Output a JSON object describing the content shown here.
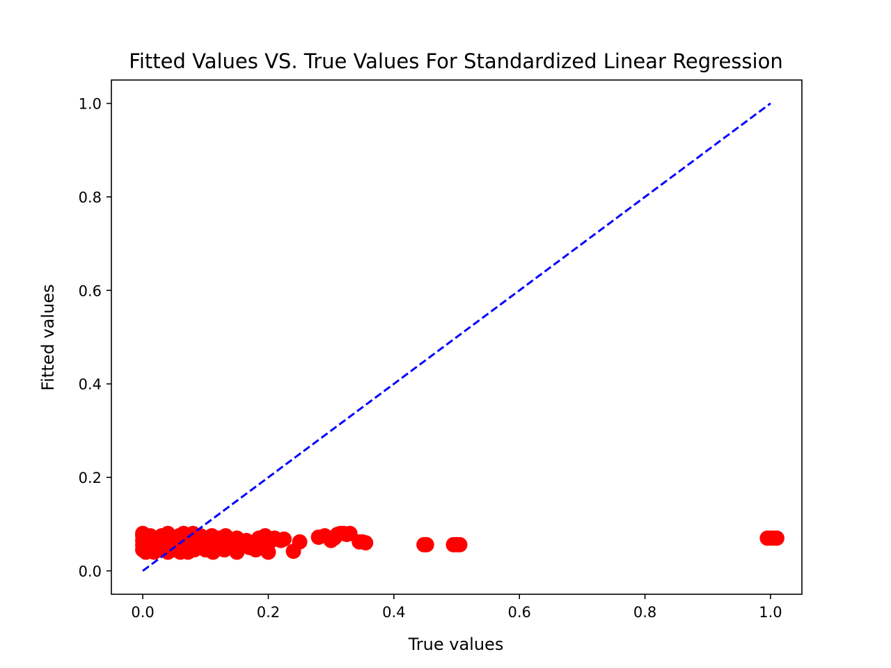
{
  "chart_data": {
    "type": "scatter",
    "title": "Fitted Values VS. True Values For Standardized Linear Regression",
    "xlabel": "True values",
    "ylabel": "Fitted values",
    "xlim": [
      -0.05,
      1.05
    ],
    "ylim": [
      -0.05,
      1.05
    ],
    "xticks": [
      {
        "value": 0.0,
        "label": "0.0"
      },
      {
        "value": 0.2,
        "label": "0.2"
      },
      {
        "value": 0.4,
        "label": "0.4"
      },
      {
        "value": 0.6,
        "label": "0.6"
      },
      {
        "value": 0.8,
        "label": "0.8"
      },
      {
        "value": 1.0,
        "label": "1.0"
      }
    ],
    "yticks": [
      {
        "value": 0.0,
        "label": "0.0"
      },
      {
        "value": 0.2,
        "label": "0.2"
      },
      {
        "value": 0.4,
        "label": "0.4"
      },
      {
        "value": 0.6,
        "label": "0.6"
      },
      {
        "value": 0.8,
        "label": "0.8"
      },
      {
        "value": 1.0,
        "label": "1.0"
      }
    ],
    "grid": false,
    "legend": "none",
    "reference_line": {
      "x": [
        0.0,
        1.0
      ],
      "y": [
        0.0,
        1.0
      ],
      "style": "dashed",
      "color": "#0000ff"
    },
    "series": [
      {
        "color": "#ff0000",
        "marker": "circle",
        "points": [
          {
            "x": 0.0,
            "y": 0.045
          },
          {
            "x": 0.0,
            "y": 0.055
          },
          {
            "x": 0.0,
            "y": 0.065
          },
          {
            "x": 0.0,
            "y": 0.075
          },
          {
            "x": 0.0,
            "y": 0.08
          },
          {
            "x": 0.005,
            "y": 0.04
          },
          {
            "x": 0.005,
            "y": 0.06
          },
          {
            "x": 0.005,
            "y": 0.07
          },
          {
            "x": 0.008,
            "y": 0.05
          },
          {
            "x": 0.01,
            "y": 0.045
          },
          {
            "x": 0.01,
            "y": 0.065
          },
          {
            "x": 0.012,
            "y": 0.075
          },
          {
            "x": 0.015,
            "y": 0.055
          },
          {
            "x": 0.018,
            "y": 0.04
          },
          {
            "x": 0.02,
            "y": 0.07
          },
          {
            "x": 0.022,
            "y": 0.05
          },
          {
            "x": 0.025,
            "y": 0.06
          },
          {
            "x": 0.028,
            "y": 0.045
          },
          {
            "x": 0.03,
            "y": 0.075
          },
          {
            "x": 0.032,
            "y": 0.055
          },
          {
            "x": 0.035,
            "y": 0.065
          },
          {
            "x": 0.04,
            "y": 0.04
          },
          {
            "x": 0.04,
            "y": 0.08
          },
          {
            "x": 0.042,
            "y": 0.05
          },
          {
            "x": 0.045,
            "y": 0.06
          },
          {
            "x": 0.05,
            "y": 0.07
          },
          {
            "x": 0.05,
            "y": 0.045
          },
          {
            "x": 0.055,
            "y": 0.055
          },
          {
            "x": 0.058,
            "y": 0.075
          },
          {
            "x": 0.06,
            "y": 0.04
          },
          {
            "x": 0.062,
            "y": 0.065
          },
          {
            "x": 0.065,
            "y": 0.08
          },
          {
            "x": 0.068,
            "y": 0.05
          },
          {
            "x": 0.07,
            "y": 0.06
          },
          {
            "x": 0.072,
            "y": 0.04
          },
          {
            "x": 0.075,
            "y": 0.07
          },
          {
            "x": 0.078,
            "y": 0.055
          },
          {
            "x": 0.08,
            "y": 0.08
          },
          {
            "x": 0.082,
            "y": 0.045
          },
          {
            "x": 0.085,
            "y": 0.065
          },
          {
            "x": 0.09,
            "y": 0.05
          },
          {
            "x": 0.092,
            "y": 0.075
          },
          {
            "x": 0.095,
            "y": 0.06
          },
          {
            "x": 0.1,
            "y": 0.045
          },
          {
            "x": 0.1,
            "y": 0.07
          },
          {
            "x": 0.105,
            "y": 0.055
          },
          {
            "x": 0.11,
            "y": 0.075
          },
          {
            "x": 0.112,
            "y": 0.04
          },
          {
            "x": 0.115,
            "y": 0.065
          },
          {
            "x": 0.12,
            "y": 0.05
          },
          {
            "x": 0.122,
            "y": 0.07
          },
          {
            "x": 0.125,
            "y": 0.06
          },
          {
            "x": 0.13,
            "y": 0.045
          },
          {
            "x": 0.132,
            "y": 0.075
          },
          {
            "x": 0.135,
            "y": 0.055
          },
          {
            "x": 0.14,
            "y": 0.065
          },
          {
            "x": 0.145,
            "y": 0.05
          },
          {
            "x": 0.15,
            "y": 0.07
          },
          {
            "x": 0.15,
            "y": 0.04
          },
          {
            "x": 0.155,
            "y": 0.06
          },
          {
            "x": 0.16,
            "y": 0.055
          },
          {
            "x": 0.165,
            "y": 0.065
          },
          {
            "x": 0.17,
            "y": 0.05
          },
          {
            "x": 0.175,
            "y": 0.06
          },
          {
            "x": 0.18,
            "y": 0.045
          },
          {
            "x": 0.185,
            "y": 0.07
          },
          {
            "x": 0.19,
            "y": 0.055
          },
          {
            "x": 0.195,
            "y": 0.075
          },
          {
            "x": 0.2,
            "y": 0.06
          },
          {
            "x": 0.2,
            "y": 0.04
          },
          {
            "x": 0.205,
            "y": 0.065
          },
          {
            "x": 0.21,
            "y": 0.07
          },
          {
            "x": 0.22,
            "y": 0.065
          },
          {
            "x": 0.225,
            "y": 0.068
          },
          {
            "x": 0.24,
            "y": 0.042
          },
          {
            "x": 0.25,
            "y": 0.062
          },
          {
            "x": 0.28,
            "y": 0.072
          },
          {
            "x": 0.29,
            "y": 0.075
          },
          {
            "x": 0.3,
            "y": 0.065
          },
          {
            "x": 0.305,
            "y": 0.07
          },
          {
            "x": 0.31,
            "y": 0.078
          },
          {
            "x": 0.315,
            "y": 0.08
          },
          {
            "x": 0.32,
            "y": 0.08
          },
          {
            "x": 0.325,
            "y": 0.078
          },
          {
            "x": 0.33,
            "y": 0.08
          },
          {
            "x": 0.345,
            "y": 0.062
          },
          {
            "x": 0.35,
            "y": 0.062
          },
          {
            "x": 0.355,
            "y": 0.06
          },
          {
            "x": 0.448,
            "y": 0.056
          },
          {
            "x": 0.452,
            "y": 0.056
          },
          {
            "x": 0.495,
            "y": 0.056
          },
          {
            "x": 0.5,
            "y": 0.056
          },
          {
            "x": 0.505,
            "y": 0.056
          },
          {
            "x": 0.995,
            "y": 0.07
          },
          {
            "x": 1.0,
            "y": 0.07
          },
          {
            "x": 1.005,
            "y": 0.07
          },
          {
            "x": 1.01,
            "y": 0.07
          }
        ]
      }
    ]
  }
}
